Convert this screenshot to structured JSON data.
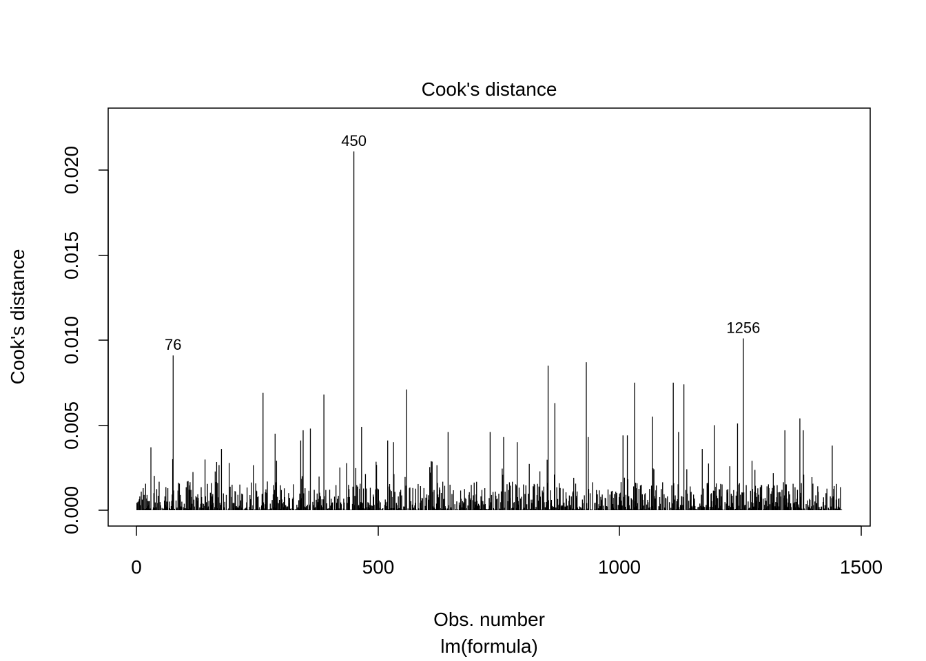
{
  "chart_data": {
    "type": "bar",
    "subtype": "histogram-style spikes (R plot type h)",
    "title": "Cook's distance",
    "xlabel": "Obs. number",
    "subtitle": "lm(formula)",
    "ylabel": "Cook's distance",
    "xlim": [
      0,
      1500
    ],
    "ylim": [
      0,
      0.02
    ],
    "x_ticks": [
      0,
      500,
      1000,
      1500
    ],
    "x_tick_labels": [
      "0",
      "500",
      "1000",
      "1500"
    ],
    "y_ticks": [
      0,
      0.005,
      0.01,
      0.015,
      0.02
    ],
    "y_tick_labels": [
      "0.000",
      "0.005",
      "0.010",
      "0.015",
      "0.020"
    ],
    "n_obs": 1460,
    "labeled_points": [
      {
        "x": 76,
        "y": 0.0091,
        "label": "76"
      },
      {
        "x": 450,
        "y": 0.0211,
        "label": "450"
      },
      {
        "x": 1256,
        "y": 0.0101,
        "label": "1256"
      }
    ],
    "peaks": [
      {
        "x": 30,
        "y": 0.0037
      },
      {
        "x": 75,
        "y": 0.003
      },
      {
        "x": 176,
        "y": 0.0036
      },
      {
        "x": 262,
        "y": 0.0069
      },
      {
        "x": 287,
        "y": 0.0045
      },
      {
        "x": 340,
        "y": 0.0041
      },
      {
        "x": 345,
        "y": 0.0047
      },
      {
        "x": 360,
        "y": 0.0048
      },
      {
        "x": 388,
        "y": 0.0068
      },
      {
        "x": 466,
        "y": 0.0049
      },
      {
        "x": 520,
        "y": 0.0041
      },
      {
        "x": 532,
        "y": 0.004
      },
      {
        "x": 559,
        "y": 0.0071
      },
      {
        "x": 645,
        "y": 0.0046
      },
      {
        "x": 732,
        "y": 0.0046
      },
      {
        "x": 760,
        "y": 0.0043
      },
      {
        "x": 788,
        "y": 0.004
      },
      {
        "x": 852,
        "y": 0.0085
      },
      {
        "x": 866,
        "y": 0.0063
      },
      {
        "x": 931,
        "y": 0.0087
      },
      {
        "x": 935,
        "y": 0.0043
      },
      {
        "x": 1007,
        "y": 0.0044
      },
      {
        "x": 1016,
        "y": 0.0044
      },
      {
        "x": 1031,
        "y": 0.0075
      },
      {
        "x": 1068,
        "y": 0.0055
      },
      {
        "x": 1111,
        "y": 0.0075
      },
      {
        "x": 1122,
        "y": 0.0046
      },
      {
        "x": 1133,
        "y": 0.0074
      },
      {
        "x": 1171,
        "y": 0.0036
      },
      {
        "x": 1196,
        "y": 0.005
      },
      {
        "x": 1244,
        "y": 0.0051
      },
      {
        "x": 1342,
        "y": 0.0047
      },
      {
        "x": 1373,
        "y": 0.0054
      },
      {
        "x": 1380,
        "y": 0.0047
      },
      {
        "x": 1440,
        "y": 0.0038
      }
    ]
  }
}
